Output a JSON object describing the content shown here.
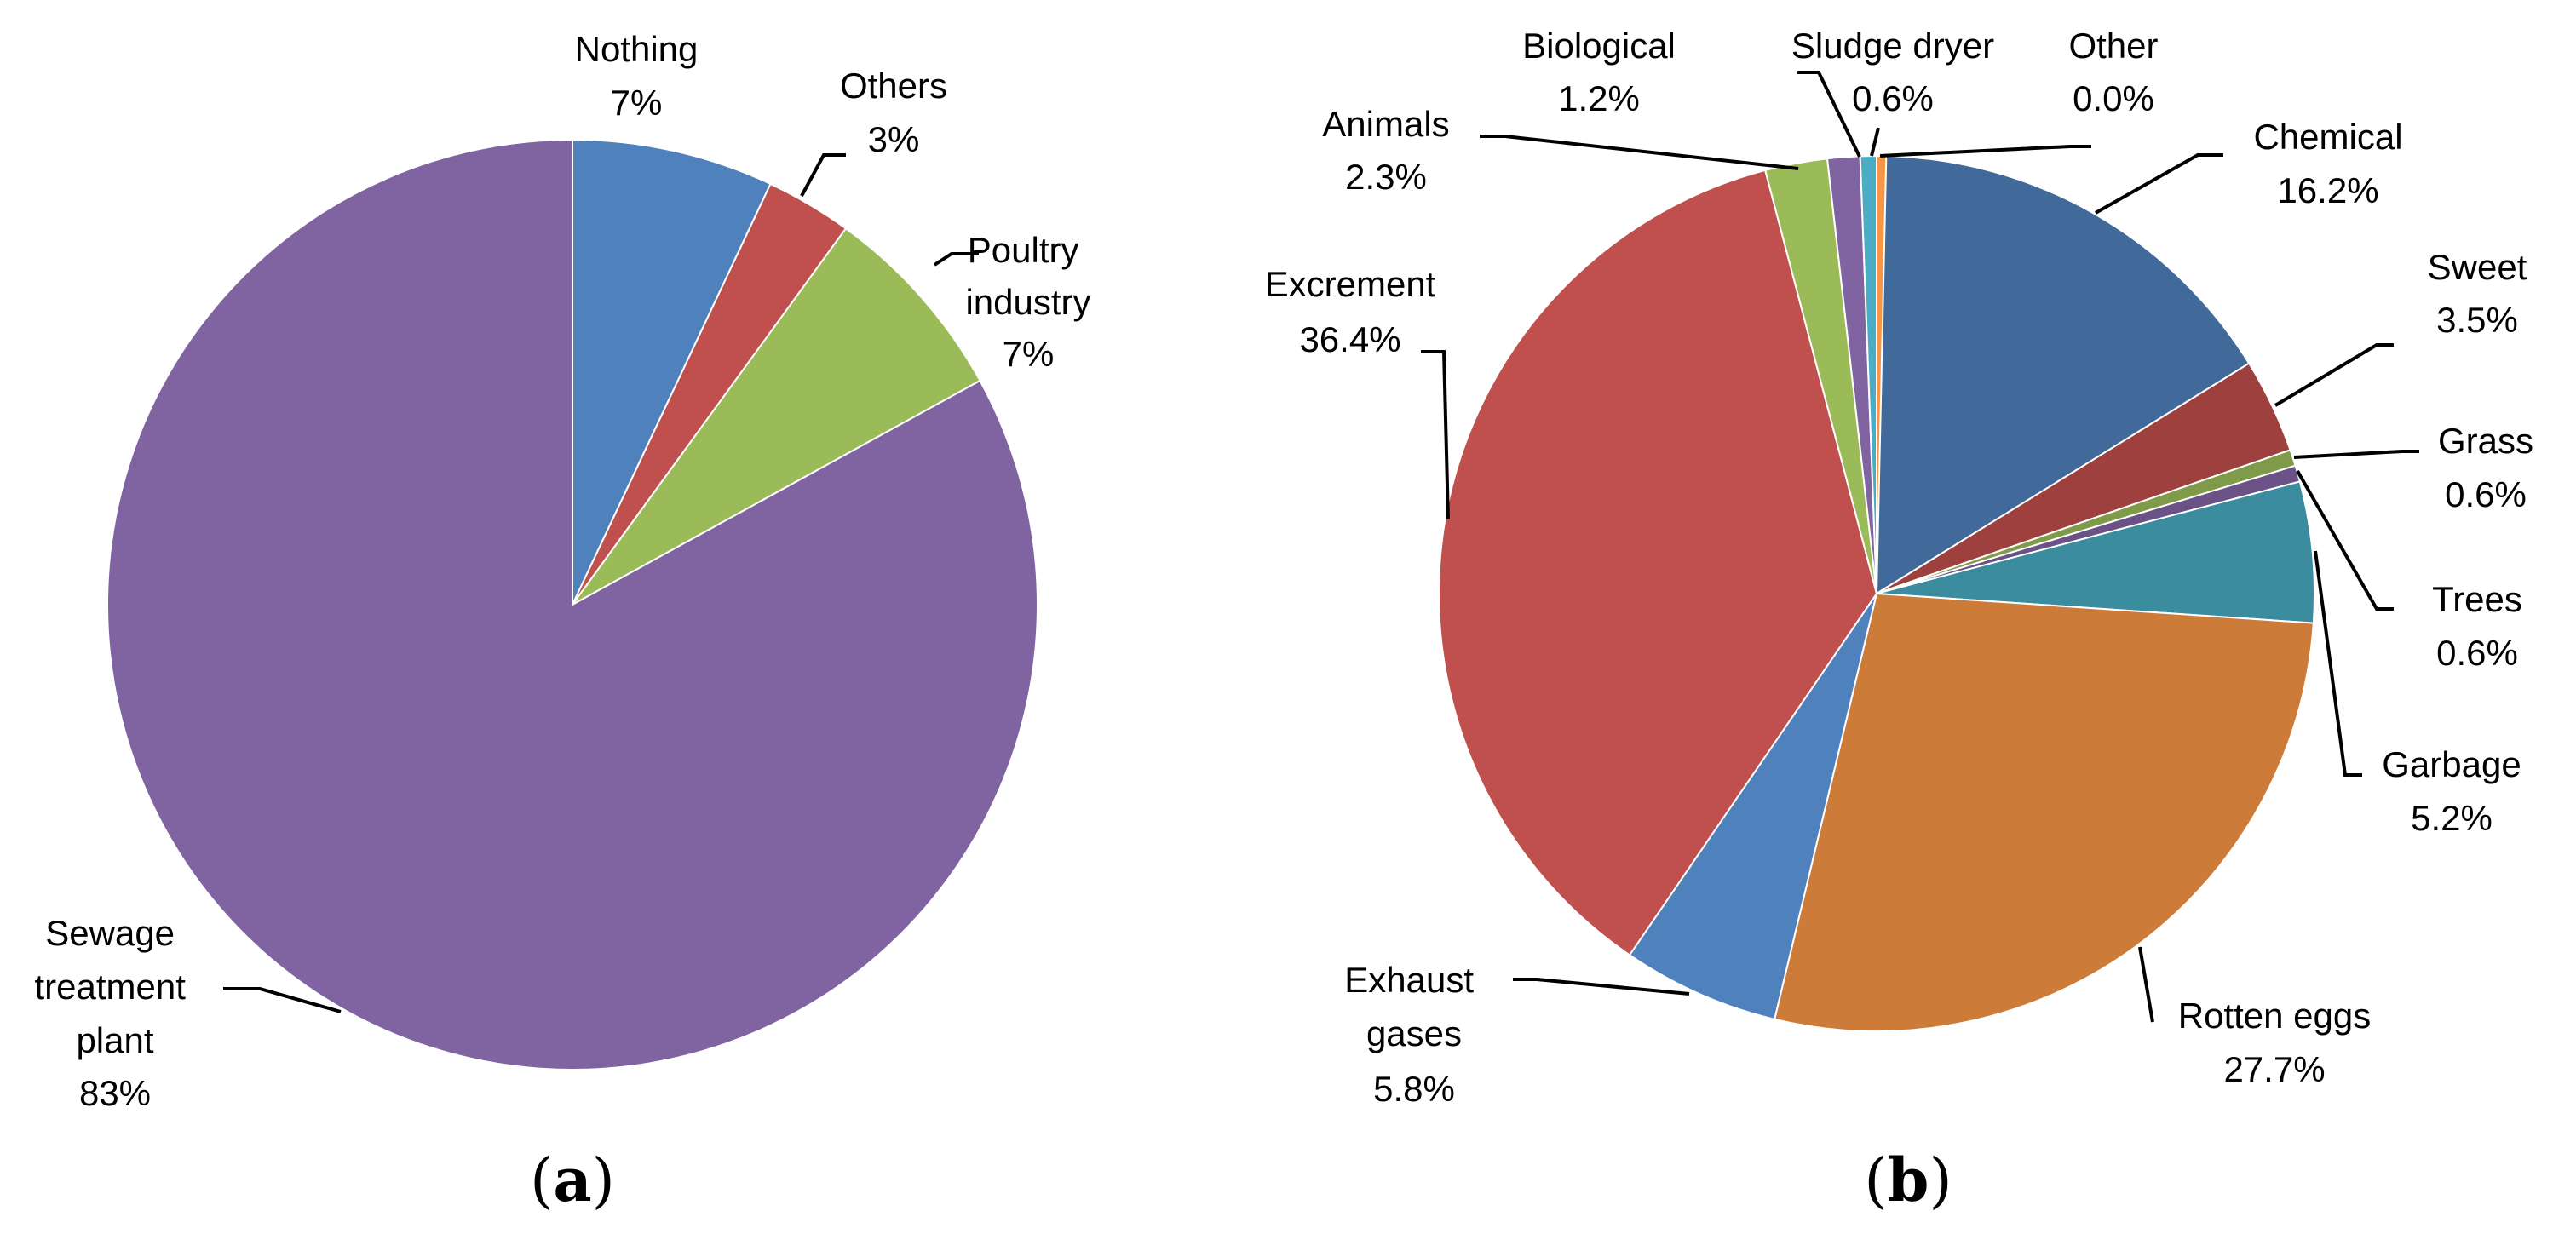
{
  "chart_data": [
    {
      "type": "pie",
      "panel": "a",
      "title": "",
      "slices": [
        {
          "label": "Nothing",
          "value": 7,
          "value_label": "7%",
          "color": "#4F81BD"
        },
        {
          "label": "Others",
          "value": 3,
          "value_label": "3%",
          "color": "#C0504D"
        },
        {
          "label": "Poultry industry",
          "value": 7,
          "value_label": "7%",
          "color": "#9BBB59"
        },
        {
          "label": "Sewage treatment plant",
          "value": 83,
          "value_label": "83%",
          "color": "#8064A2"
        }
      ]
    },
    {
      "type": "pie",
      "panel": "b",
      "title": "",
      "slices": [
        {
          "label": "Chemical",
          "value": 16.2,
          "value_label": "16.2%",
          "color": "#41699A"
        },
        {
          "label": "Sweet",
          "value": 3.5,
          "value_label": "3.5%",
          "color": "#9E403E"
        },
        {
          "label": "Grass",
          "value": 0.6,
          "value_label": "0.6%",
          "color": "#7F9B49"
        },
        {
          "label": "Trees",
          "value": 0.6,
          "value_label": "0.6%",
          "color": "#6A5286"
        },
        {
          "label": "Garbage",
          "value": 5.2,
          "value_label": "5.2%",
          "color": "#3C8CA0"
        },
        {
          "label": "Rotten eggs",
          "value": 27.7,
          "value_label": "27.7%",
          "color": "#CD7B38"
        },
        {
          "label": "Exhaust gases",
          "value": 5.8,
          "value_label": "5.8%",
          "color": "#4F81BD"
        },
        {
          "label": "Excrement",
          "value": 36.4,
          "value_label": "36.4%",
          "color": "#C0504D"
        },
        {
          "label": "Animals",
          "value": 2.3,
          "value_label": "2.3%",
          "color": "#9BBB59"
        },
        {
          "label": "Biological",
          "value": 1.2,
          "value_label": "1.2%",
          "color": "#8064A2"
        },
        {
          "label": "Sludge dryer",
          "value": 0.6,
          "value_label": "0.6%",
          "color": "#4BACC6"
        },
        {
          "label": "Other",
          "value": 0.0,
          "value_label": "0.0%",
          "color": "#F79646"
        }
      ]
    }
  ],
  "captions": {
    "a": "a",
    "b": "b"
  }
}
